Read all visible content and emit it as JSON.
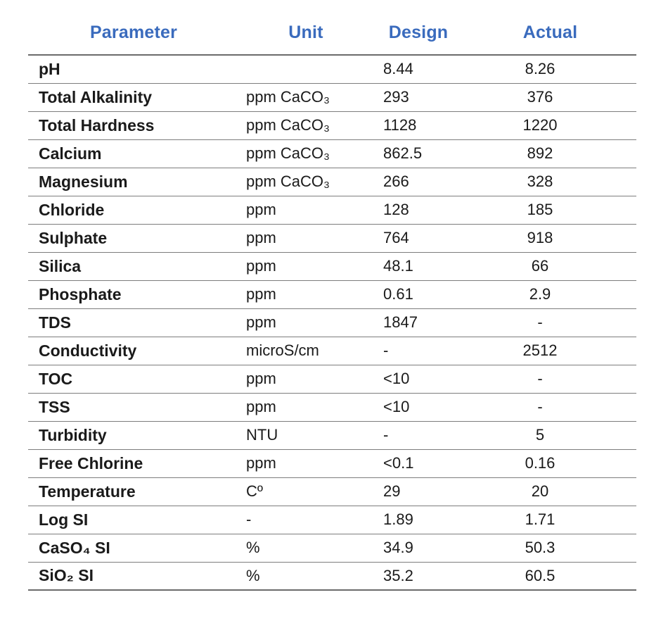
{
  "colors": {
    "header_text": "#3A6BBD",
    "body_text": "#1a1a1a",
    "row_rule": "#7d7d7d",
    "heavy_rule": "#6b6b6b",
    "background": "#ffffff"
  },
  "table": {
    "headers": [
      "Parameter",
      "Unit",
      "Design",
      "Actual"
    ],
    "rows": [
      {
        "parameter": "pH",
        "unit": "",
        "design": "8.44",
        "actual": "8.26"
      },
      {
        "parameter": "Total Alkalinity",
        "unit": "ppm CaCO₃",
        "design": "293",
        "actual": "376"
      },
      {
        "parameter": "Total Hardness",
        "unit": "ppm CaCO₃",
        "design": "1128",
        "actual": "1220"
      },
      {
        "parameter": "Calcium",
        "unit": "ppm CaCO₃",
        "design": "862.5",
        "actual": "892"
      },
      {
        "parameter": "Magnesium",
        "unit": "ppm CaCO₃",
        "design": "266",
        "actual": "328"
      },
      {
        "parameter": "Chloride",
        "unit": "ppm",
        "design": "128",
        "actual": "185"
      },
      {
        "parameter": "Sulphate",
        "unit": "ppm",
        "design": "764",
        "actual": "918"
      },
      {
        "parameter": "Silica",
        "unit": "ppm",
        "design": "48.1",
        "actual": "66"
      },
      {
        "parameter": "Phosphate",
        "unit": "ppm",
        "design": "0.61",
        "actual": "2.9"
      },
      {
        "parameter": "TDS",
        "unit": "ppm",
        "design": "1847",
        "actual": "-"
      },
      {
        "parameter": "Conductivity",
        "unit": "microS/cm",
        "design": "-",
        "actual": "2512"
      },
      {
        "parameter": "TOC",
        "unit": "ppm",
        "design": "<10",
        "actual": "-"
      },
      {
        "parameter": "TSS",
        "unit": "ppm",
        "design": "<10",
        "actual": "-"
      },
      {
        "parameter": "Turbidity",
        "unit": "NTU",
        "design": "-",
        "actual": "5"
      },
      {
        "parameter": "Free Chlorine",
        "unit": "ppm",
        "design": "<0.1",
        "actual": "0.16"
      },
      {
        "parameter": "Temperature",
        "unit": "Cº",
        "design": "29",
        "actual": "20"
      },
      {
        "parameter": "Log SI",
        "unit": "-",
        "design": "1.89",
        "actual": "1.71"
      },
      {
        "parameter": "CaSO₄ SI",
        "unit": "%",
        "design": "34.9",
        "actual": "50.3"
      },
      {
        "parameter": "SiO₂ SI",
        "unit": "%",
        "design": "35.2",
        "actual": "60.5"
      }
    ]
  }
}
